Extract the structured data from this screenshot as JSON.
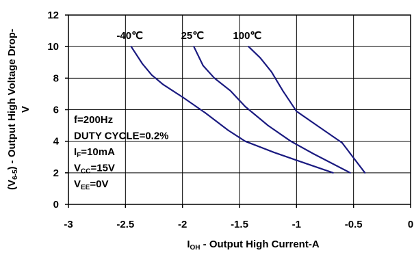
{
  "chart_data": {
    "type": "line",
    "xlabel": {
      "main": "I",
      "sub": "OH",
      "rest": " - Output High Current-A"
    },
    "ylabel": {
      "pre": "(V",
      "sub": "6-5",
      "post": ") - Output High Voltage Drop-",
      "line2": "V"
    },
    "xlim": [
      -3,
      0
    ],
    "ylim": [
      0,
      12
    ],
    "x_ticks": [
      -3,
      -2.5,
      -2,
      -1.5,
      -1,
      -0.5,
      0
    ],
    "y_ticks": [
      0,
      2,
      4,
      6,
      8,
      10,
      12
    ],
    "grid": true,
    "line_color": "#1a1a80",
    "series": [
      {
        "name": "-40℃",
        "points": [
          [
            -2.45,
            10.0
          ],
          [
            -2.35,
            8.9
          ],
          [
            -2.27,
            8.2
          ],
          [
            -2.17,
            7.6
          ],
          [
            -2.0,
            6.8
          ],
          [
            -1.8,
            5.8
          ],
          [
            -1.6,
            4.7
          ],
          [
            -1.45,
            4.0
          ],
          [
            -1.2,
            3.3
          ],
          [
            -1.0,
            2.8
          ],
          [
            -0.68,
            2.0
          ]
        ]
      },
      {
        "name": "25℃",
        "points": [
          [
            -1.9,
            10.0
          ],
          [
            -1.82,
            8.8
          ],
          [
            -1.72,
            8.0
          ],
          [
            -1.58,
            7.2
          ],
          [
            -1.45,
            6.2
          ],
          [
            -1.25,
            5.0
          ],
          [
            -1.05,
            4.0
          ],
          [
            -0.85,
            3.2
          ],
          [
            -0.53,
            2.0
          ]
        ]
      },
      {
        "name": "100℃",
        "points": [
          [
            -1.42,
            10.0
          ],
          [
            -1.32,
            9.3
          ],
          [
            -1.22,
            8.4
          ],
          [
            -1.12,
            7.2
          ],
          [
            -1.0,
            5.9
          ],
          [
            -0.82,
            5.0
          ],
          [
            -0.6,
            3.9
          ],
          [
            -0.4,
            2.0
          ]
        ]
      }
    ],
    "annotations": [
      {
        "kind": "plain",
        "text": "f=200Hz"
      },
      {
        "kind": "plain",
        "text": "DUTY CYCLE=0.2%"
      },
      {
        "kind": "sub",
        "main": "I",
        "sub": "F",
        "rest": "=10mA"
      },
      {
        "kind": "sub",
        "main": "V",
        "sub": "CC",
        "rest": "=15V"
      },
      {
        "kind": "sub",
        "main": "V",
        "sub": "EE",
        "rest": "=0V"
      }
    ]
  }
}
